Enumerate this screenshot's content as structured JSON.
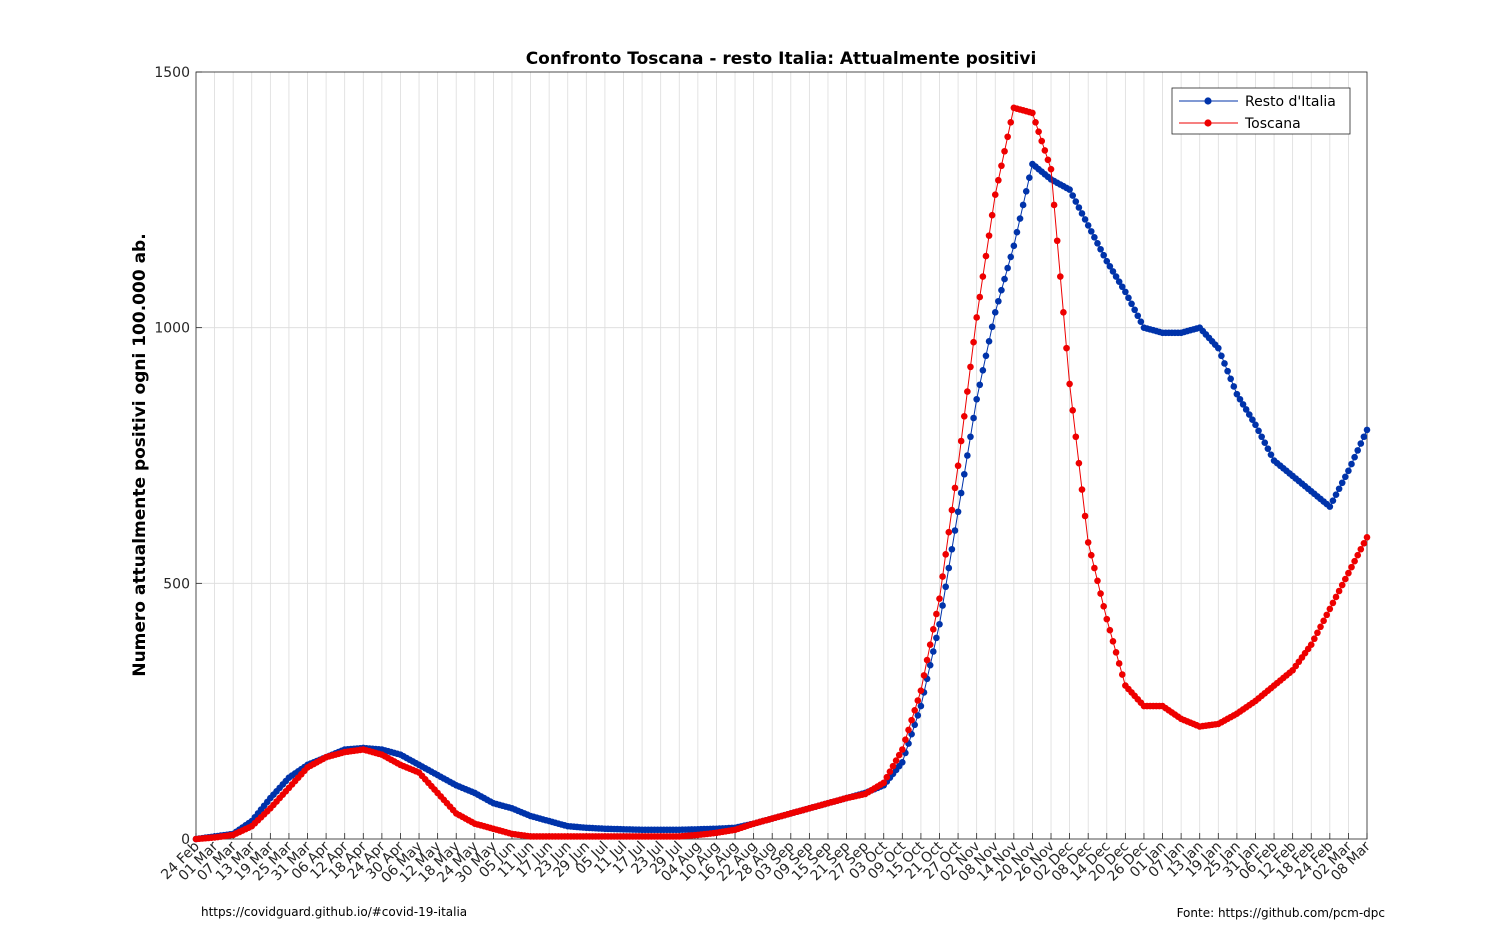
{
  "chart_data": {
    "type": "line",
    "title": "Confronto Toscana - resto Italia: Attualmente positivi",
    "xlabel": "",
    "ylabel": "Numero attualmente positivi ogni 100.000 ab.",
    "ylim": [
      0,
      1500
    ],
    "yticks": [
      0,
      500,
      1000,
      1500
    ],
    "grid": true,
    "legend_position": "top-right",
    "x_start_date": "2020-02-24",
    "x_end_date": "2021-03-08",
    "categories": [
      "24 Feb",
      "01 Mar",
      "07 Mar",
      "13 Mar",
      "19 Mar",
      "25 Mar",
      "31 Mar",
      "06 Apr",
      "12 Apr",
      "18 Apr",
      "24 Apr",
      "30 Apr",
      "06 May",
      "12 May",
      "18 May",
      "24 May",
      "30 May",
      "05 Jun",
      "11 Jun",
      "17 Jun",
      "23 Jun",
      "29 Jun",
      "05 Jul",
      "11 Jul",
      "17 Jul",
      "23 Jul",
      "29 Jul",
      "04 Aug",
      "10 Aug",
      "16 Aug",
      "22 Aug",
      "28 Aug",
      "03 Sep",
      "09 Sep",
      "15 Sep",
      "21 Sep",
      "27 Sep",
      "03 Oct",
      "09 Oct",
      "15 Oct",
      "21 Oct",
      "27 Oct",
      "02 Nov",
      "08 Nov",
      "14 Nov",
      "20 Nov",
      "26 Nov",
      "02 Dec",
      "08 Dec",
      "14 Dec",
      "20 Dec",
      "26 Dec",
      "01 Jan",
      "07 Jan",
      "13 Jan",
      "19 Jan",
      "25 Jan",
      "31 Jan",
      "06 Feb",
      "12 Feb",
      "18 Feb",
      "24 Feb",
      "02 Mar",
      "08 Mar"
    ],
    "series": [
      {
        "name": "Resto d'Italia",
        "color": "#0033aa",
        "values": [
          0,
          5,
          10,
          35,
          80,
          120,
          145,
          160,
          175,
          178,
          175,
          165,
          145,
          125,
          105,
          90,
          70,
          60,
          45,
          35,
          25,
          22,
          20,
          19,
          18,
          18,
          18,
          19,
          20,
          22,
          30,
          40,
          50,
          60,
          70,
          80,
          90,
          105,
          150,
          260,
          420,
          640,
          860,
          1030,
          1160,
          1320,
          1290,
          1270,
          1200,
          1130,
          1070,
          1000,
          990,
          990,
          1000,
          960,
          870,
          810,
          740,
          710,
          680,
          650,
          720,
          800
        ]
      },
      {
        "name": "Toscana",
        "color": "#ee0000",
        "values": [
          0,
          3,
          8,
          25,
          60,
          100,
          140,
          160,
          170,
          175,
          165,
          145,
          130,
          90,
          50,
          30,
          20,
          10,
          5,
          5,
          5,
          5,
          5,
          5,
          5,
          5,
          5,
          8,
          12,
          18,
          30,
          40,
          50,
          60,
          70,
          80,
          88,
          110,
          175,
          290,
          470,
          730,
          1020,
          1260,
          1430,
          1420,
          1310,
          890,
          580,
          430,
          300,
          260,
          260,
          235,
          220,
          225,
          245,
          270,
          300,
          330,
          380,
          450,
          520,
          590
        ]
      }
    ],
    "footer_left": "https://covidguard.github.io/#covid-19-italia",
    "footer_right": "Fonte: https://github.com/pcm-dpc"
  }
}
